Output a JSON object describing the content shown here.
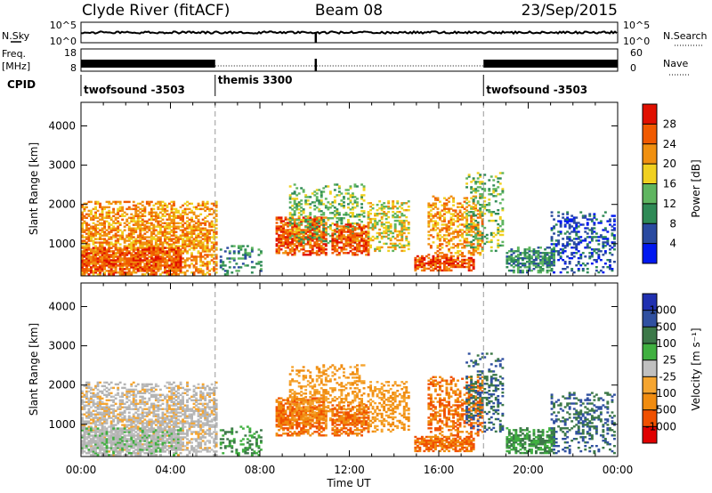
{
  "header": {
    "station": "Clyde River (fitACF)",
    "beam": "Beam 08",
    "date": "23/Sep/2015"
  },
  "panel_labels": {
    "nsky": "N.Sky",
    "nsearch": "N.Search",
    "freq_line1": "Freq.",
    "freq_line2": "[MHz]",
    "nave": "Nave",
    "cpid": "CPID"
  },
  "noise_axis": {
    "left_ticks": [
      "10^5",
      "10^0"
    ],
    "right_ticks": [
      "10^5",
      "10^0"
    ]
  },
  "freq_axis": {
    "left_ticks": [
      "18",
      "8"
    ],
    "right_ticks": [
      "60",
      "0"
    ]
  },
  "cpid_segments": [
    {
      "label": "twofsound -3503",
      "start_hour": 0
    },
    {
      "label": "themis 3300",
      "start_hour": 6
    },
    {
      "label": "twofsound -3503",
      "start_hour": 18
    }
  ],
  "colors": {
    "power": [
      "#0018f0",
      "#2a4aa0",
      "#2f8a56",
      "#5fb560",
      "#f0d020",
      "#f09010",
      "#f05a00",
      "#e01000"
    ],
    "velocity": [
      "#e00000",
      "#f05000",
      "#f08c10",
      "#f5a530",
      "#c0c0c0",
      "#40b040",
      "#3c7848",
      "#3050a0",
      "#2030b0"
    ],
    "ground": "#b4b4b4"
  },
  "colorbars": {
    "power": {
      "label": "Power [dB]",
      "ticks": [
        "4",
        "8",
        "12",
        "16",
        "20",
        "24",
        "28"
      ]
    },
    "velocity": {
      "label": "Velocity [m s⁻¹]",
      "ticks": [
        "1000",
        "500",
        "100",
        "25",
        "-25",
        "-100",
        "-500",
        "-1000"
      ]
    }
  },
  "chart_data": {
    "type": "heatmap",
    "title": "Clyde River (fitACF)  Beam 08  23/Sep/2015",
    "xlabel": "Time UT",
    "ylabel": "Slant Range [km]",
    "x_ticks": [
      "00:00",
      "04:00",
      "08:00",
      "12:00",
      "16:00",
      "20:00",
      "00:00"
    ],
    "xlim_hours": [
      0,
      24
    ],
    "y_ticks": [
      "1000",
      "2000",
      "3000",
      "4000"
    ],
    "ylim_km": [
      180,
      4600
    ],
    "mode_boundaries_hours": [
      6,
      18
    ],
    "backscatter_regions": [
      {
        "t0": 0.0,
        "t1": 6.0,
        "r0": 200,
        "r1": 2050,
        "density": 0.72,
        "power_db": 24,
        "velocity_ms": -25
      },
      {
        "t0": 0.0,
        "t1": 4.5,
        "r0": 200,
        "r1": 900,
        "density": 0.9,
        "power_db": 28,
        "velocity_ms": 25
      },
      {
        "t0": 6.2,
        "t1": 8.0,
        "r0": 200,
        "r1": 950,
        "density": 0.35,
        "power_db": 12,
        "velocity_ms": 100
      },
      {
        "t0": 8.7,
        "t1": 10.9,
        "r0": 700,
        "r1": 1650,
        "density": 0.9,
        "power_db": 28,
        "velocity_ms": -500
      },
      {
        "t0": 9.3,
        "t1": 12.6,
        "r0": 1000,
        "r1": 2500,
        "density": 0.45,
        "power_db": 16,
        "velocity_ms": -100
      },
      {
        "t0": 11.2,
        "t1": 12.8,
        "r0": 700,
        "r1": 1500,
        "density": 0.85,
        "power_db": 28,
        "velocity_ms": -500
      },
      {
        "t0": 12.8,
        "t1": 14.6,
        "r0": 800,
        "r1": 2100,
        "density": 0.55,
        "power_db": 20,
        "velocity_ms": -100
      },
      {
        "t0": 14.9,
        "t1": 17.6,
        "r0": 300,
        "r1": 700,
        "density": 0.92,
        "power_db": 28,
        "velocity_ms": -500
      },
      {
        "t0": 15.5,
        "t1": 18.0,
        "r0": 700,
        "r1": 2200,
        "density": 0.55,
        "power_db": 24,
        "velocity_ms": -500
      },
      {
        "t0": 17.2,
        "t1": 18.9,
        "r0": 800,
        "r1": 2800,
        "density": 0.35,
        "power_db": 16,
        "velocity_ms": 500
      },
      {
        "t0": 19.0,
        "t1": 21.2,
        "r0": 250,
        "r1": 900,
        "density": 0.85,
        "power_db": 12,
        "velocity_ms": 100
      },
      {
        "t0": 21.0,
        "t1": 23.9,
        "r0": 250,
        "r1": 1800,
        "density": 0.4,
        "power_db": 8,
        "velocity_ms": 500
      }
    ]
  }
}
